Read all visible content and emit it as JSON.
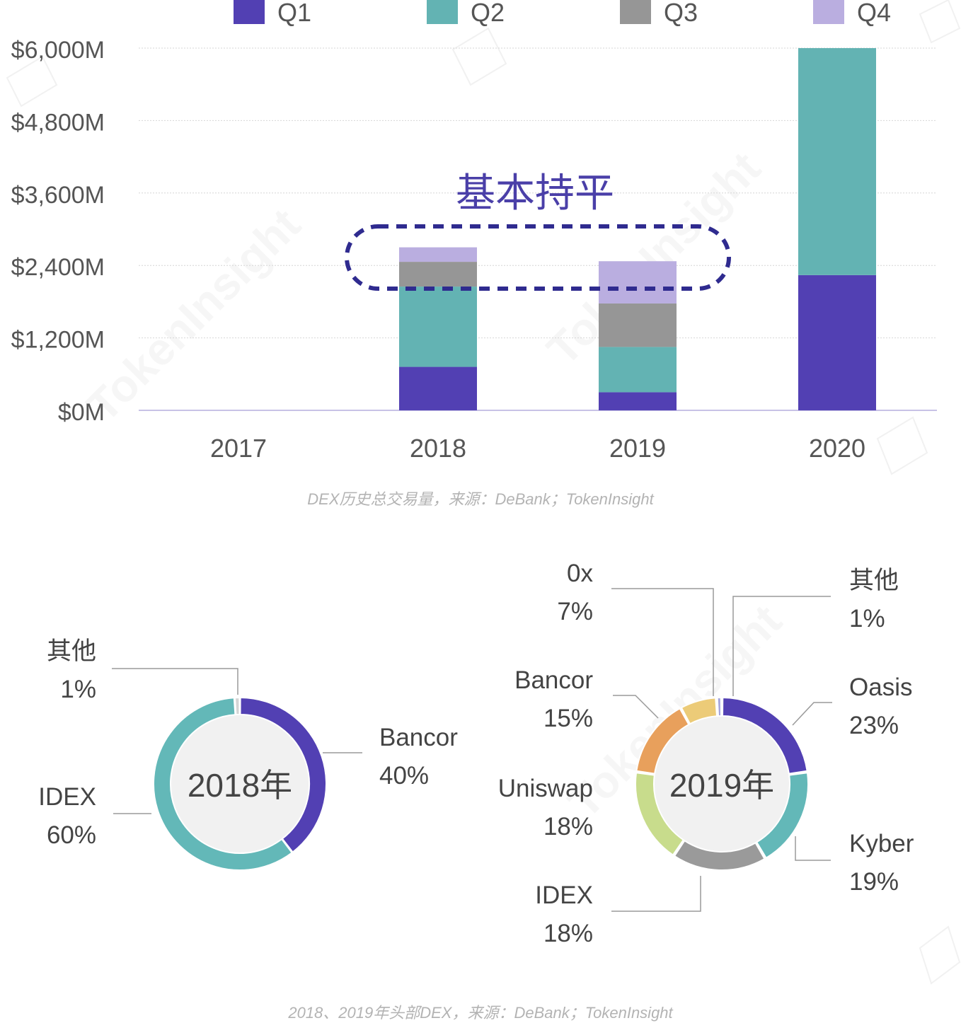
{
  "legend": [
    {
      "label": "Q1",
      "color": "#5240b3"
    },
    {
      "label": "Q2",
      "color": "#63b3b3"
    },
    {
      "label": "Q3",
      "color": "#969696"
    },
    {
      "label": "Q4",
      "color": "#baaee0"
    }
  ],
  "annotation": "基本持平",
  "caption_top": "DEX历史总交易量，来源：DeBank；TokenInsight",
  "caption_bottom": "2018、2019年头部DEX，来源：DeBank；TokenInsight",
  "watermark": "TokenInsight",
  "chart_data": [
    {
      "type": "bar",
      "stacked": true,
      "categories": [
        "2017",
        "2018",
        "2019",
        "2020"
      ],
      "y_ticks": [
        "$0M",
        "$1,200M",
        "$2,400M",
        "$3,600M",
        "$4,800M",
        "$6,000M"
      ],
      "ylim": [
        0,
        6000
      ],
      "grid": true,
      "legend_position": "top",
      "series": [
        {
          "name": "Q1",
          "color": "#5240b3",
          "values": [
            0,
            720,
            300,
            2240
          ]
        },
        {
          "name": "Q2",
          "color": "#63b3b3",
          "values": [
            0,
            1330,
            750,
            3760
          ]
        },
        {
          "name": "Q3",
          "color": "#969696",
          "values": [
            0,
            410,
            720,
            0
          ]
        },
        {
          "name": "Q4",
          "color": "#baaee0",
          "values": [
            0,
            240,
            700,
            0
          ]
        }
      ]
    },
    {
      "type": "pie",
      "donut": true,
      "center_label": "2018年",
      "slices": [
        {
          "label": "Bancor",
          "value": 40,
          "pct": "40%",
          "color": "#5240b3"
        },
        {
          "label": "IDEX",
          "value": 60,
          "pct": "60%",
          "color": "#63b8b8"
        },
        {
          "label": "其他",
          "value": 1,
          "pct": "1%",
          "color": "#d4d4d4"
        }
      ]
    },
    {
      "type": "pie",
      "donut": true,
      "center_label": "2019年",
      "slices": [
        {
          "label": "Oasis",
          "value": 23,
          "pct": "23%",
          "color": "#5240b3"
        },
        {
          "label": "Kyber",
          "value": 19,
          "pct": "19%",
          "color": "#63b8b8"
        },
        {
          "label": "IDEX",
          "value": 18,
          "pct": "18%",
          "color": "#9a9a9a"
        },
        {
          "label": "Uniswap",
          "value": 18,
          "pct": "18%",
          "color": "#c8dc8c"
        },
        {
          "label": "Bancor",
          "value": 15,
          "pct": "15%",
          "color": "#e8a05c"
        },
        {
          "label": "0x",
          "value": 7,
          "pct": "7%",
          "color": "#eccb78"
        },
        {
          "label": "其他",
          "value": 1,
          "pct": "1%",
          "color": "#a3a3dc"
        }
      ]
    }
  ]
}
